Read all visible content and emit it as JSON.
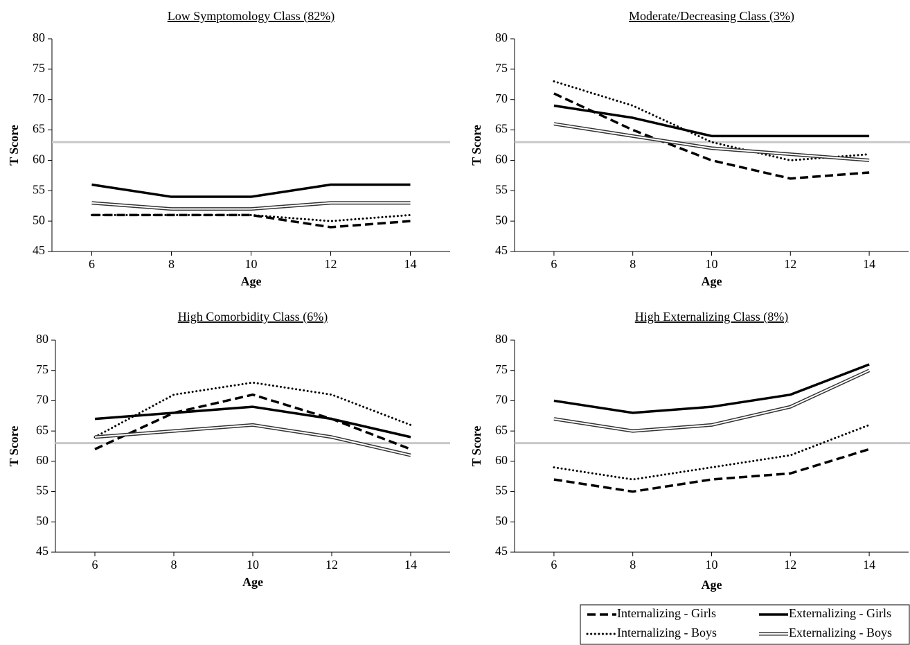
{
  "chart_data": [
    {
      "type": "line",
      "title": "Low Symptomology  Class (82%)",
      "x_label": "Age",
      "y_label": "T Score",
      "x": [
        6,
        8,
        10,
        12,
        14
      ],
      "xlim": [
        5,
        15
      ],
      "xticks": [
        6,
        8,
        10,
        12,
        14
      ],
      "ylim": [
        45,
        80
      ],
      "yticks": [
        45,
        50,
        55,
        60,
        65,
        70,
        75,
        80
      ],
      "reference_line": {
        "value": 63,
        "color": "#c8c8c8"
      },
      "series": [
        {
          "style": "dashed",
          "color": "#000000",
          "values": [
            51,
            51,
            51,
            49,
            50
          ]
        },
        {
          "style": "dotted",
          "color": "#000000",
          "values": [
            51,
            51,
            51,
            50,
            51
          ]
        },
        {
          "style": "solid",
          "color": "#000000",
          "values": [
            56,
            54,
            54,
            56,
            56
          ]
        },
        {
          "style": "double",
          "color": "#333333",
          "values": [
            53,
            52,
            52,
            53,
            53
          ]
        }
      ]
    },
    {
      "type": "line",
      "title": "Moderate/Decreasing  Class (3%)",
      "x_label": "Age",
      "y_label": "T Score",
      "x": [
        6,
        8,
        10,
        12,
        14
      ],
      "xlim": [
        5,
        15
      ],
      "xticks": [
        6,
        8,
        10,
        12,
        14
      ],
      "ylim": [
        45,
        80
      ],
      "yticks": [
        45,
        50,
        55,
        60,
        65,
        70,
        75,
        80
      ],
      "reference_line": {
        "value": 63,
        "color": "#c8c8c8"
      },
      "series": [
        {
          "style": "dashed",
          "color": "#000000",
          "values": [
            71,
            65,
            60,
            57,
            58
          ]
        },
        {
          "style": "dotted",
          "color": "#000000",
          "values": [
            73,
            69,
            63,
            60,
            61
          ]
        },
        {
          "style": "solid",
          "color": "#000000",
          "values": [
            69,
            67,
            64,
            64,
            64
          ]
        },
        {
          "style": "double",
          "color": "#333333",
          "values": [
            66,
            64,
            62,
            61,
            60
          ]
        }
      ]
    },
    {
      "type": "line",
      "title": "High Comorbidity  Class (6%)",
      "x_label": "Age",
      "y_label": "T Score",
      "x": [
        6,
        8,
        10,
        12,
        14
      ],
      "xlim": [
        5,
        15
      ],
      "xticks": [
        6,
        8,
        10,
        12,
        14
      ],
      "ylim": [
        45,
        80
      ],
      "yticks": [
        45,
        50,
        55,
        60,
        65,
        70,
        75,
        80
      ],
      "reference_line": {
        "value": 63,
        "color": "#c8c8c8"
      },
      "series": [
        {
          "style": "dashed",
          "color": "#000000",
          "values": [
            62,
            68,
            71,
            67,
            62
          ]
        },
        {
          "style": "dotted",
          "color": "#000000",
          "values": [
            64,
            71,
            73,
            71,
            66
          ]
        },
        {
          "style": "solid",
          "color": "#000000",
          "values": [
            67,
            68,
            69,
            67,
            64
          ]
        },
        {
          "style": "double",
          "color": "#333333",
          "values": [
            64,
            65,
            66,
            64,
            61
          ]
        }
      ]
    },
    {
      "type": "line",
      "title": "High Externalizing  Class (8%)",
      "x_label": "Age",
      "y_label": "T Score",
      "x": [
        6,
        8,
        10,
        12,
        14
      ],
      "xlim": [
        5,
        15
      ],
      "xticks": [
        6,
        8,
        10,
        12,
        14
      ],
      "ylim": [
        45,
        80
      ],
      "yticks": [
        45,
        50,
        55,
        60,
        65,
        70,
        75,
        80
      ],
      "reference_line": {
        "value": 63,
        "color": "#c8c8c8"
      },
      "series": [
        {
          "name": "Internalizing - Girls",
          "style": "dashed",
          "color": "#000000",
          "values": [
            57,
            55,
            57,
            58,
            62
          ]
        },
        {
          "name": "Internalizing - Boys",
          "style": "dotted",
          "color": "#000000",
          "values": [
            59,
            57,
            59,
            61,
            66
          ]
        },
        {
          "name": "Externalizing - Girls",
          "style": "solid",
          "color": "#000000",
          "values": [
            70,
            68,
            69,
            71,
            76
          ]
        },
        {
          "name": "Externalizing - Boys",
          "style": "double",
          "color": "#333333",
          "values": [
            67,
            65,
            66,
            69,
            75
          ]
        }
      ]
    }
  ]
}
